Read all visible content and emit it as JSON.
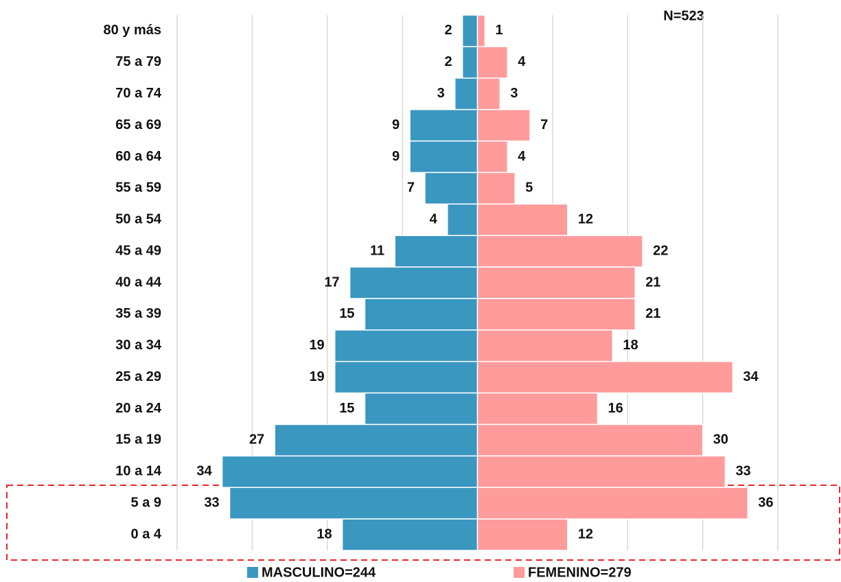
{
  "chart_data": {
    "type": "pyramid",
    "annotation": "N=523",
    "categories": [
      "80 y más",
      "75 a 79",
      "70 a 74",
      "65 a 69",
      "60 a 64",
      "55 a 59",
      "50 a 54",
      "45 a 49",
      "40 a 44",
      "35 a 39",
      "30 a 34",
      "25 a 29",
      "20 a 24",
      "15 a 19",
      "10 a 14",
      "5 a 9",
      "0 a 4"
    ],
    "series": [
      {
        "name": "MASCULINO=244",
        "color": "#3a97c0",
        "side": "left",
        "values": [
          2,
          2,
          3,
          9,
          9,
          7,
          4,
          11,
          17,
          15,
          19,
          19,
          15,
          27,
          34,
          33,
          18
        ]
      },
      {
        "name": "FEMENINO=279",
        "color": "#ff9b9b",
        "side": "right",
        "values": [
          1,
          4,
          3,
          7,
          4,
          5,
          12,
          22,
          21,
          21,
          18,
          34,
          16,
          30,
          33,
          36,
          12
        ]
      }
    ],
    "xlim": [
      -40,
      40
    ],
    "xticks": [
      -40,
      -30,
      -20,
      -10,
      0,
      10,
      20,
      30,
      40
    ],
    "grid": true
  }
}
